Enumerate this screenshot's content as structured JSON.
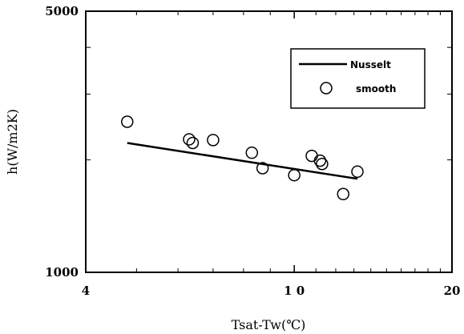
{
  "chart_data": {
    "type": "scatter",
    "xlabel": "Tsat-Tw(℃)",
    "ylabel": "h(W/m2K)",
    "x_scale": "log",
    "y_scale": "log",
    "xlim": [
      4,
      20
    ],
    "ylim": [
      1000,
      5000
    ],
    "x_ticks": [
      4,
      10,
      20
    ],
    "y_ticks": [
      1000,
      5000
    ],
    "x_tick_labels": [
      "4",
      "1 0",
      "20"
    ],
    "y_tick_labels": [
      "1000",
      "5000"
    ],
    "grid": false,
    "legend_position": "top-right",
    "series": [
      {
        "name": "Nusselt",
        "kind": "line",
        "color": "#000000",
        "x": [
          4.8,
          13.2
        ],
        "y": [
          2220,
          1780
        ]
      },
      {
        "name": "smooth",
        "kind": "marker",
        "marker": "open-circle",
        "color": "#000000",
        "x": [
          4.8,
          6.3,
          6.4,
          7.0,
          8.3,
          8.7,
          10.0,
          10.8,
          11.2,
          11.3,
          12.4,
          13.2
        ],
        "y": [
          2530,
          2270,
          2220,
          2260,
          2090,
          1900,
          1820,
          2050,
          1990,
          1950,
          1620,
          1860
        ]
      }
    ]
  }
}
